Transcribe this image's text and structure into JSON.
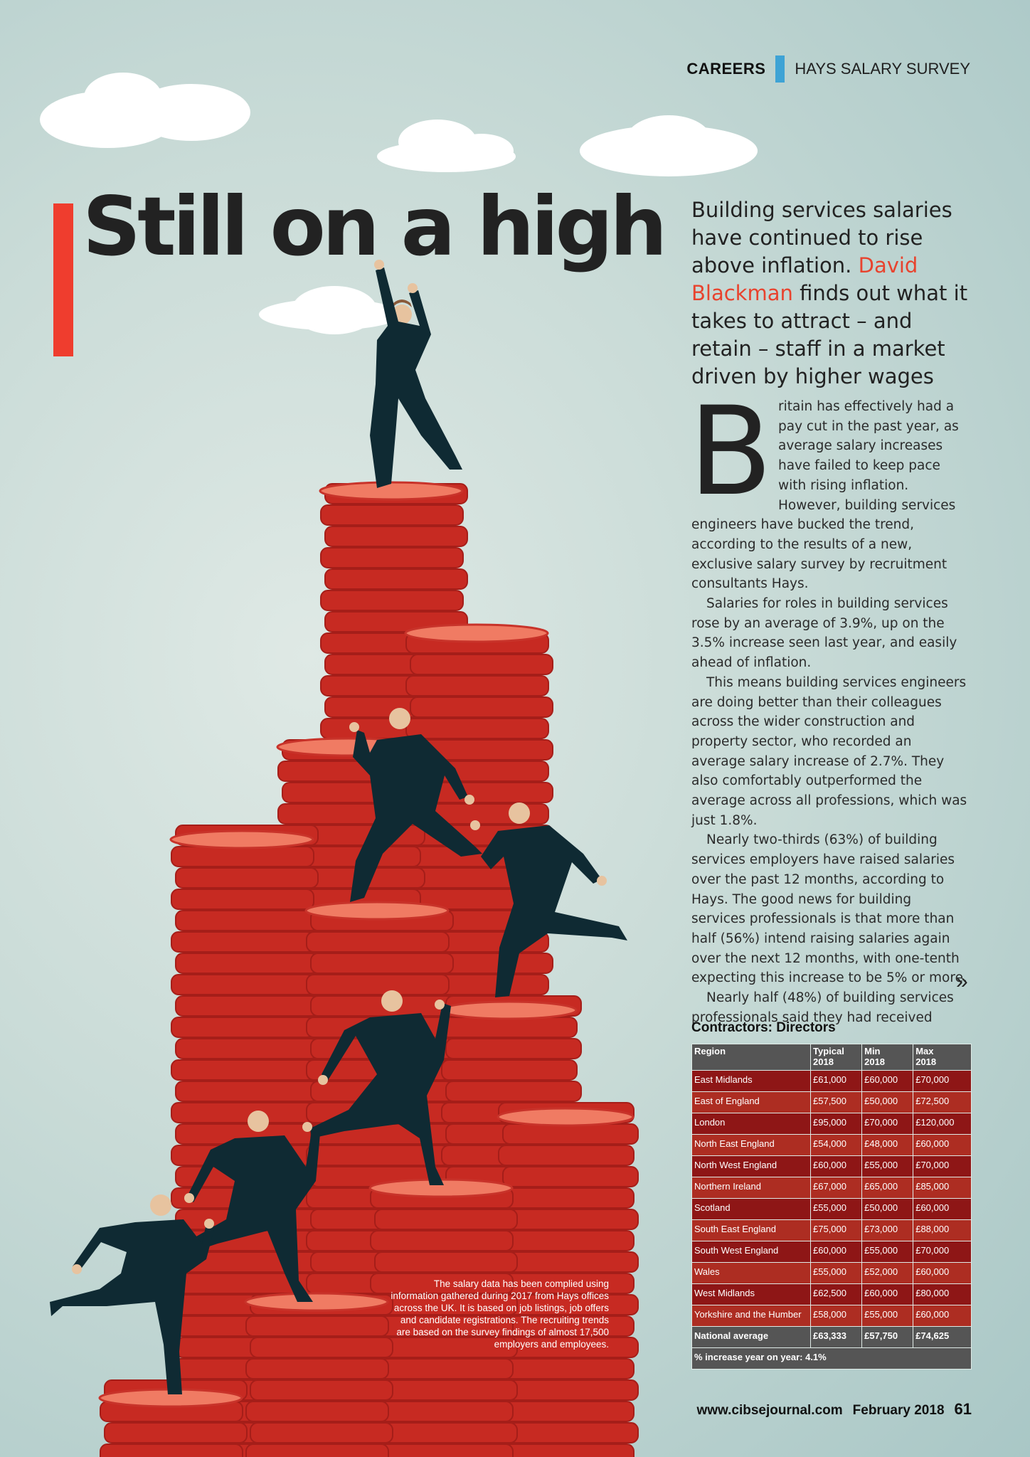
{
  "header": {
    "section": "CAREERS",
    "series": "HAYS SALARY SURVEY",
    "accent_color": "#3ea3d5"
  },
  "headline": "Still on a high",
  "standfirst": {
    "before": "Building services salaries have continued to rise above inflation. ",
    "author": "David Blackman",
    "after": " finds out what it takes to attract – and retain – staff in a market driven by higher wages"
  },
  "article": {
    "dropcap": "B",
    "first_rest": "ritain has effectively had a pay cut in the past year, as average salary increases have failed to keep pace with rising inflation. However, building services engineers have bucked the trend, according to the results of a new, exclusive salary survey by recruitment consultants Hays.",
    "paragraphs": [
      "Salaries for roles in building services rose by an average of 3.9%, up on the 3.5% increase seen last year, and easily ahead of inflation.",
      "This means building services engineers are doing better than their colleagues across the wider construction and property sector, who recorded an average salary increase of 2.7%. They also comfortably outperformed the average across all professions, which was just 1.8%.",
      "Nearly two-thirds (63%) of building services employers have raised salaries over the past 12 months, according to Hays. The good news for building services professionals is that more than half (56%) intend raising salaries again over the next 12 months, with one-tenth expecting this increase to be 5% or more.",
      "Nearly half (48%) of building services professionals said they had received"
    ],
    "continue_icon": "double-chevron-right-icon"
  },
  "table": {
    "title": "Contractors: Directors",
    "headers": {
      "region": "Region",
      "typical_1": "Typical",
      "typical_2": "2018",
      "min_1": "Min",
      "min_2": "2018",
      "max_1": "Max",
      "max_2": "2018"
    },
    "rows": [
      [
        "East Midlands",
        "£61,000",
        "£60,000",
        "£70,000"
      ],
      [
        "East of England",
        "£57,500",
        "£50,000",
        "£72,500"
      ],
      [
        "London",
        "£95,000",
        "£70,000",
        "£120,000"
      ],
      [
        "North East England",
        "£54,000",
        "£48,000",
        "£60,000"
      ],
      [
        "North West England",
        "£60,000",
        "£55,000",
        "£70,000"
      ],
      [
        "Northern Ireland",
        "£67,000",
        "£65,000",
        "£85,000"
      ],
      [
        "Scotland",
        "£55,000",
        "£50,000",
        "£60,000"
      ],
      [
        "South East England",
        "£75,000",
        "£73,000",
        "£88,000"
      ],
      [
        "South West England",
        "£60,000",
        "£55,000",
        "£70,000"
      ],
      [
        "Wales",
        "£55,000",
        "£52,000",
        "£60,000"
      ],
      [
        "West Midlands",
        "£62,500",
        "£60,000",
        "£80,000"
      ],
      [
        "Yorkshire and the Humber",
        "£58,000",
        "£55,000",
        "£60,000"
      ]
    ],
    "average": [
      "National average",
      "£63,333",
      "£57,750",
      "£74,625"
    ],
    "increase": "% increase year on year:  4.1%"
  },
  "caption": "The salary data has been complied using information gathered during 2017 from Hays offices across the UK. It is based on job listings, job offers and candidate registrations. The recruiting trends are based on the survey findings of almost 17,500 employers and employees.",
  "footer": {
    "website": "www.cibsejournal.com",
    "issue": "February 2018",
    "page": "61"
  },
  "colors": {
    "headline_bar": "#ef3d2e",
    "author": "#e8432e",
    "coin": "#d8322a",
    "suit": "#0f2a33"
  }
}
